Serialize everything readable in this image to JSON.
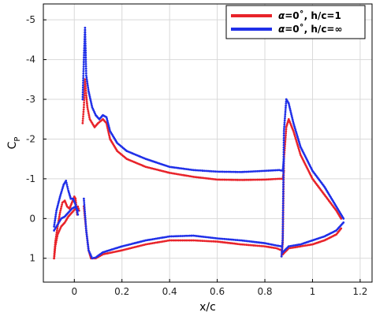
{
  "chart_data": {
    "type": "scatter",
    "xlabel": "x/c",
    "ylabel": "C",
    "ylabel_sub": "P",
    "xlim": [
      -0.13,
      1.25
    ],
    "ylim": [
      -5.4,
      1.6
    ],
    "y_axis_reversed": true,
    "grid": true,
    "legend_position": "top-right",
    "xticks": [
      0,
      0.2,
      0.4,
      0.6,
      0.8,
      1,
      1.2
    ],
    "xtick_labels": [
      "0",
      "0.2",
      "0.4",
      "0.6",
      "0.8",
      "1",
      "1.2"
    ],
    "yticks": [
      -5,
      -4,
      -3,
      -2,
      -1,
      0,
      1
    ],
    "ytick_labels": [
      "-5",
      "-4",
      "-3",
      "-2",
      "-1",
      "0",
      "1"
    ],
    "series": [
      {
        "name": "α=0˚, h/c=1",
        "legend_prefix": "α",
        "legend_suffix": "=0˚, h/c=1",
        "color": "#e8232a",
        "curves": [
          [
            [
              -0.085,
              1.0
            ],
            [
              -0.08,
              0.6
            ],
            [
              -0.07,
              0.2
            ],
            [
              -0.06,
              -0.15
            ],
            [
              -0.05,
              -0.4
            ],
            [
              -0.04,
              -0.45
            ],
            [
              -0.03,
              -0.3
            ],
            [
              -0.02,
              -0.25
            ],
            [
              -0.01,
              -0.4
            ],
            [
              0.0,
              -0.55
            ],
            [
              0.005,
              -0.5
            ],
            [
              0.012,
              -0.1
            ]
          ],
          [
            [
              -0.085,
              1.0
            ],
            [
              -0.08,
              0.7
            ],
            [
              -0.07,
              0.4
            ],
            [
              -0.055,
              0.2
            ],
            [
              -0.04,
              0.1
            ],
            [
              -0.025,
              -0.05
            ],
            [
              -0.01,
              -0.15
            ],
            [
              0.005,
              -0.25
            ],
            [
              0.015,
              -0.3
            ],
            [
              0.02,
              -0.2
            ]
          ],
          [
            [
              0.035,
              -2.4
            ],
            [
              0.04,
              -2.8
            ],
            [
              0.045,
              -3.5
            ],
            [
              0.05,
              -3.1
            ],
            [
              0.055,
              -2.8
            ],
            [
              0.065,
              -2.5
            ],
            [
              0.075,
              -2.4
            ],
            [
              0.085,
              -2.3
            ],
            [
              0.1,
              -2.4
            ],
            [
              0.12,
              -2.5
            ],
            [
              0.135,
              -2.4
            ],
            [
              0.15,
              -2.0
            ],
            [
              0.18,
              -1.7
            ],
            [
              0.22,
              -1.5
            ],
            [
              0.3,
              -1.3
            ],
            [
              0.4,
              -1.15
            ],
            [
              0.5,
              -1.05
            ],
            [
              0.6,
              -0.98
            ],
            [
              0.7,
              -0.97
            ],
            [
              0.8,
              -0.98
            ],
            [
              0.86,
              -1.0
            ],
            [
              0.875,
              -1.0
            ],
            [
              0.88,
              -1.2
            ]
          ],
          [
            [
              0.04,
              -0.3
            ],
            [
              0.05,
              0.3
            ],
            [
              0.06,
              0.8
            ],
            [
              0.07,
              1.0
            ],
            [
              0.09,
              1.0
            ],
            [
              0.12,
              0.9
            ],
            [
              0.2,
              0.8
            ],
            [
              0.3,
              0.65
            ],
            [
              0.4,
              0.55
            ],
            [
              0.5,
              0.55
            ],
            [
              0.6,
              0.58
            ],
            [
              0.7,
              0.65
            ],
            [
              0.8,
              0.7
            ],
            [
              0.85,
              0.75
            ],
            [
              0.87,
              0.8
            ]
          ],
          [
            [
              0.87,
              0.95
            ],
            [
              0.875,
              0.6
            ],
            [
              0.88,
              -1.5
            ],
            [
              0.89,
              -2.3
            ],
            [
              0.9,
              -2.5
            ],
            [
              0.92,
              -2.2
            ],
            [
              0.95,
              -1.6
            ],
            [
              1.0,
              -1.0
            ],
            [
              1.05,
              -0.6
            ],
            [
              1.1,
              -0.2
            ],
            [
              1.12,
              0.0
            ]
          ],
          [
            [
              0.875,
              0.9
            ],
            [
              0.9,
              0.75
            ],
            [
              0.95,
              0.7
            ],
            [
              1.0,
              0.65
            ],
            [
              1.05,
              0.55
            ],
            [
              1.1,
              0.4
            ],
            [
              1.12,
              0.25
            ]
          ]
        ]
      },
      {
        "name": "α=0˚, h/c=∞",
        "legend_prefix": "α",
        "legend_suffix": "=0˚, h/c=∞",
        "color": "#1f2fe8",
        "curves": [
          [
            [
              -0.085,
              0.2
            ],
            [
              -0.075,
              -0.2
            ],
            [
              -0.06,
              -0.55
            ],
            [
              -0.045,
              -0.85
            ],
            [
              -0.035,
              -0.95
            ],
            [
              -0.025,
              -0.7
            ],
            [
              -0.015,
              -0.5
            ],
            [
              -0.005,
              -0.5
            ],
            [
              0.005,
              -0.35
            ],
            [
              0.015,
              -0.1
            ]
          ],
          [
            [
              -0.085,
              0.3
            ],
            [
              -0.07,
              0.15
            ],
            [
              -0.055,
              0.0
            ],
            [
              -0.04,
              -0.05
            ],
            [
              -0.025,
              -0.15
            ],
            [
              -0.01,
              -0.25
            ],
            [
              0.005,
              -0.3
            ],
            [
              0.015,
              -0.2
            ]
          ],
          [
            [
              0.035,
              -3.0
            ],
            [
              0.04,
              -4.0
            ],
            [
              0.045,
              -4.8
            ],
            [
              0.05,
              -3.6
            ],
            [
              0.06,
              -3.2
            ],
            [
              0.075,
              -2.8
            ],
            [
              0.09,
              -2.6
            ],
            [
              0.105,
              -2.5
            ],
            [
              0.12,
              -2.6
            ],
            [
              0.135,
              -2.55
            ],
            [
              0.15,
              -2.2
            ],
            [
              0.18,
              -1.9
            ],
            [
              0.22,
              -1.7
            ],
            [
              0.3,
              -1.5
            ],
            [
              0.4,
              -1.3
            ],
            [
              0.5,
              -1.22
            ],
            [
              0.6,
              -1.18
            ],
            [
              0.7,
              -1.17
            ],
            [
              0.8,
              -1.2
            ],
            [
              0.86,
              -1.22
            ],
            [
              0.875,
              -1.2
            ],
            [
              0.88,
              -1.5
            ]
          ],
          [
            [
              0.04,
              -0.5
            ],
            [
              0.05,
              0.3
            ],
            [
              0.06,
              0.8
            ],
            [
              0.075,
              1.0
            ],
            [
              0.09,
              0.98
            ],
            [
              0.12,
              0.85
            ],
            [
              0.2,
              0.7
            ],
            [
              0.3,
              0.55
            ],
            [
              0.4,
              0.45
            ],
            [
              0.5,
              0.43
            ],
            [
              0.6,
              0.5
            ],
            [
              0.7,
              0.55
            ],
            [
              0.8,
              0.62
            ],
            [
              0.85,
              0.68
            ],
            [
              0.87,
              0.7
            ]
          ],
          [
            [
              0.87,
              0.95
            ],
            [
              0.875,
              0.5
            ],
            [
              0.88,
              -2.2
            ],
            [
              0.89,
              -3.0
            ],
            [
              0.9,
              -2.9
            ],
            [
              0.92,
              -2.4
            ],
            [
              0.95,
              -1.8
            ],
            [
              1.0,
              -1.2
            ],
            [
              1.05,
              -0.8
            ],
            [
              1.1,
              -0.3
            ],
            [
              1.13,
              0.0
            ]
          ],
          [
            [
              0.875,
              0.85
            ],
            [
              0.9,
              0.7
            ],
            [
              0.95,
              0.65
            ],
            [
              1.0,
              0.55
            ],
            [
              1.05,
              0.45
            ],
            [
              1.1,
              0.3
            ],
            [
              1.13,
              0.1
            ]
          ]
        ]
      }
    ]
  }
}
